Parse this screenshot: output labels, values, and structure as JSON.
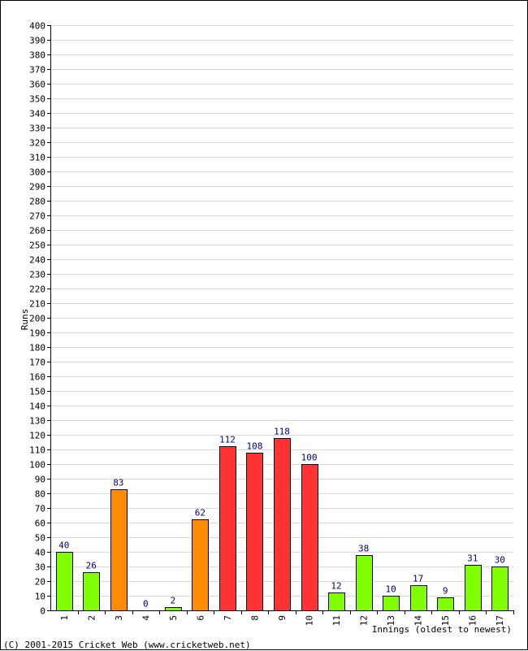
{
  "chart_data": {
    "type": "bar",
    "title": "",
    "xlabel": "Innings (oldest to newest)",
    "ylabel": "Runs",
    "ylim": [
      0,
      400
    ],
    "ytick_step": 10,
    "grid": true,
    "categories": [
      "1",
      "2",
      "3",
      "4",
      "5",
      "6",
      "7",
      "8",
      "9",
      "10",
      "11",
      "12",
      "13",
      "14",
      "15",
      "16",
      "17"
    ],
    "values": [
      40,
      26,
      83,
      0,
      2,
      62,
      112,
      108,
      118,
      100,
      12,
      38,
      10,
      17,
      9,
      31,
      30
    ],
    "bar_colors": [
      "#80ff00",
      "#80ff00",
      "#ff8c00",
      "#80ff00",
      "#80ff00",
      "#ff8c00",
      "#ff3333",
      "#ff3333",
      "#ff3333",
      "#ff3333",
      "#80ff00",
      "#80ff00",
      "#80ff00",
      "#80ff00",
      "#80ff00",
      "#80ff00",
      "#80ff00"
    ],
    "label_color": "#000080"
  },
  "footer": {
    "copyright": "(C) 2001-2015 Cricket Web (www.cricketweb.net)"
  }
}
